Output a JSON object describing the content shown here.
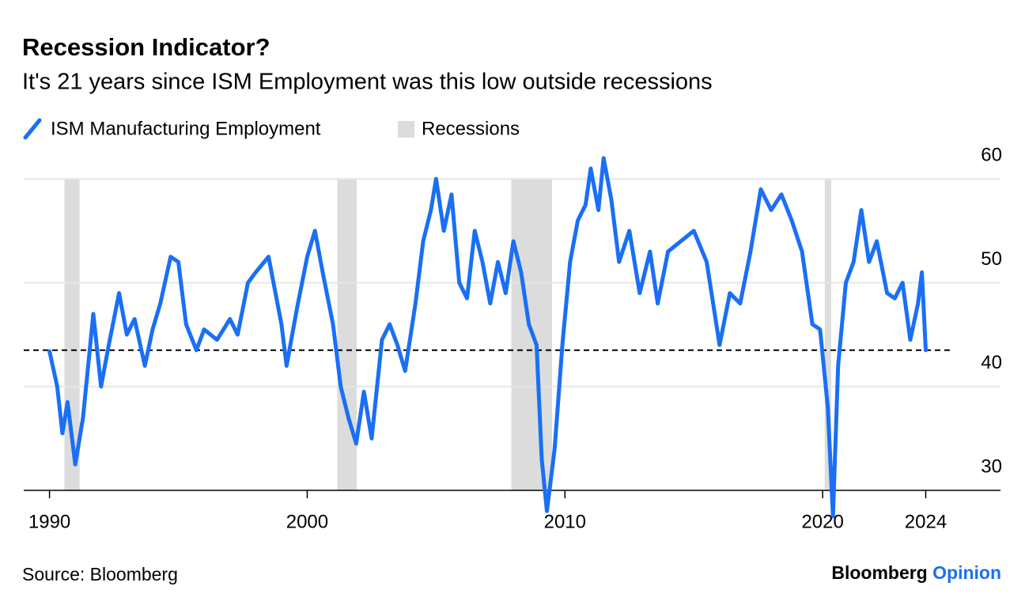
{
  "chart_data": {
    "type": "line",
    "title": "Recession Indicator?",
    "subtitle": "It's 21 years since ISM Employment was this low outside recessions",
    "x": [
      1990.0,
      1990.3,
      1990.5,
      1990.7,
      1991.0,
      1991.3,
      1991.5,
      1991.7,
      1992.0,
      1992.3,
      1992.7,
      1993.0,
      1993.3,
      1993.7,
      1994.0,
      1994.3,
      1994.7,
      1995.0,
      1995.3,
      1995.7,
      1996.0,
      1996.5,
      1997.0,
      1997.3,
      1997.7,
      1998.0,
      1998.5,
      1999.0,
      1999.2,
      1999.6,
      2000.0,
      2000.3,
      2000.6,
      2001.0,
      2001.3,
      2001.6,
      2001.9,
      2002.2,
      2002.5,
      2002.9,
      2003.2,
      2003.5,
      2003.8,
      2004.2,
      2004.5,
      2004.8,
      2005.0,
      2005.3,
      2005.6,
      2005.9,
      2006.2,
      2006.5,
      2006.8,
      2007.1,
      2007.4,
      2007.7,
      2008.0,
      2008.3,
      2008.6,
      2008.9,
      2009.1,
      2009.3,
      2009.6,
      2009.9,
      2010.2,
      2010.5,
      2010.8,
      2011.0,
      2011.3,
      2011.5,
      2011.8,
      2012.1,
      2012.5,
      2012.9,
      2013.3,
      2013.6,
      2014.0,
      2014.5,
      2015.0,
      2015.5,
      2016.0,
      2016.4,
      2016.8,
      2017.2,
      2017.6,
      2018.0,
      2018.4,
      2018.8,
      2019.2,
      2019.6,
      2019.9,
      2020.2,
      2020.4,
      2020.6,
      2020.9,
      2021.2,
      2021.5,
      2021.8,
      2022.1,
      2022.5,
      2022.8,
      2023.1,
      2023.4,
      2023.7,
      2023.85,
      2024.0
    ],
    "series": [
      {
        "name": "ISM Manufacturing Employment",
        "color": "#1a6ff5",
        "values": [
          43.4,
          40,
          35.5,
          38.5,
          32.5,
          37,
          42,
          47,
          40,
          44,
          49,
          45,
          46.5,
          42,
          45.5,
          48,
          52.5,
          52,
          46,
          43.5,
          45.5,
          44.5,
          46.5,
          45,
          50,
          51,
          52.5,
          46,
          42,
          47.5,
          52.5,
          55,
          51,
          46,
          40,
          37,
          34.5,
          39.5,
          35,
          44.5,
          46,
          44,
          41.5,
          48,
          54,
          57,
          60,
          55,
          58.5,
          50,
          48.5,
          55,
          52,
          48,
          52,
          49,
          54,
          51,
          46,
          44,
          33,
          28,
          34,
          44,
          52,
          56,
          57.5,
          61,
          57,
          62,
          58,
          52,
          55,
          49,
          53,
          48,
          53,
          54,
          55,
          52,
          44,
          49,
          48,
          53,
          59,
          57,
          58.5,
          56,
          53,
          46,
          45.5,
          38,
          27.5,
          42,
          50,
          52,
          57,
          52,
          54,
          49,
          48.5,
          50,
          44.5,
          48,
          51,
          43.5
        ]
      }
    ],
    "recessions": {
      "name": "Recessions",
      "color": "#dcdcdc",
      "periods": [
        [
          1990.58,
          1991.17
        ],
        [
          2001.17,
          2001.92
        ],
        [
          2007.92,
          2009.5
        ],
        [
          2020.08,
          2020.33
        ]
      ]
    },
    "reference_line": {
      "value": 43.5,
      "style": "dashed"
    },
    "xlim": [
      1989,
      2026.9
    ],
    "xticks": [
      1990,
      2000,
      2010,
      2020,
      2024
    ],
    "ylim": [
      30,
      62.3
    ],
    "yticks": [
      30,
      40,
      50,
      60
    ],
    "grid": true,
    "source": "Source: Bloomberg",
    "brand": {
      "name": "Bloomberg",
      "product": "Opinion"
    }
  }
}
